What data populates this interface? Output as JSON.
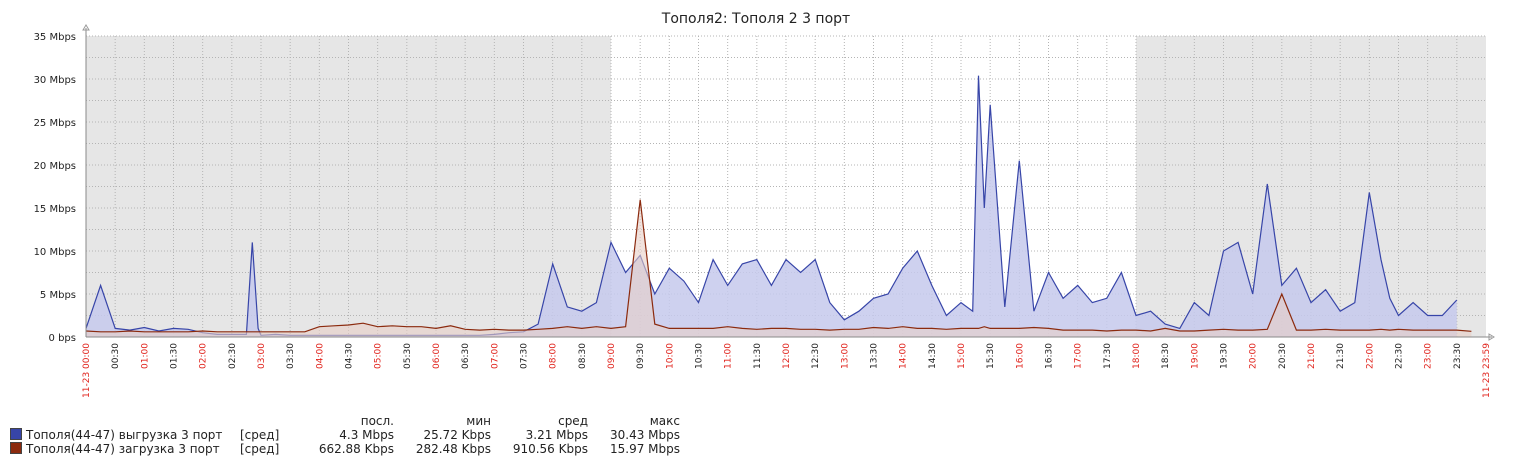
{
  "chart_data": {
    "type": "area",
    "title": "Тополя2: Тополя 2  3 порт",
    "y_unit": "Mbps",
    "ylim": [
      0,
      35
    ],
    "y_ticks": [
      "0 bps",
      "5 Mbps",
      "10 Mbps",
      "15 Mbps",
      "20 Mbps",
      "25 Mbps",
      "30 Mbps",
      "35 Mbps"
    ],
    "x_start_label": "11-23 00:00",
    "x_end_label": "11-23 23:59",
    "x_ticks": [
      "00:30",
      "01:00",
      "01:30",
      "02:00",
      "02:30",
      "03:00",
      "03:30",
      "04:00",
      "04:30",
      "05:00",
      "05:30",
      "06:00",
      "06:30",
      "07:00",
      "07:30",
      "08:00",
      "08:30",
      "09:00",
      "09:30",
      "10:00",
      "10:30",
      "11:00",
      "11:30",
      "12:00",
      "12:30",
      "13:00",
      "13:30",
      "14:00",
      "14:30",
      "15:00",
      "15:30",
      "16:00",
      "16:30",
      "17:00",
      "17:30",
      "18:00",
      "18:30",
      "19:00",
      "19:30",
      "20:00",
      "20:30",
      "21:00",
      "21:30",
      "22:00",
      "22:30",
      "23:00",
      "23:30"
    ],
    "working_time": [
      9,
      18
    ],
    "grid": true,
    "x_hours": [
      0,
      0.25,
      0.5,
      0.75,
      1,
      1.25,
      1.5,
      1.75,
      2,
      2.25,
      2.5,
      2.75,
      2.85,
      2.95,
      3,
      3.25,
      3.5,
      3.75,
      4,
      4.25,
      4.5,
      4.75,
      5,
      5.25,
      5.5,
      5.75,
      6,
      6.25,
      6.5,
      6.75,
      7,
      7.25,
      7.5,
      7.75,
      8,
      8.25,
      8.5,
      8.75,
      9,
      9.25,
      9.5,
      9.75,
      10,
      10.25,
      10.5,
      10.75,
      11,
      11.25,
      11.5,
      11.75,
      12,
      12.25,
      12.5,
      12.75,
      13,
      13.25,
      13.5,
      13.75,
      14,
      14.25,
      14.5,
      14.75,
      15,
      15.2,
      15.3,
      15.4,
      15.5,
      15.75,
      16,
      16.25,
      16.5,
      16.75,
      17,
      17.25,
      17.5,
      17.75,
      18,
      18.25,
      18.5,
      18.75,
      19,
      19.25,
      19.5,
      19.75,
      20,
      20.25,
      20.5,
      20.75,
      21,
      21.25,
      21.5,
      21.75,
      22,
      22.2,
      22.35,
      22.5,
      22.75,
      23,
      23.25,
      23.5,
      23.75,
      23.98
    ],
    "series": [
      {
        "name": "Тополя(44-47) выгрузка 3 порт",
        "color": "#3745a8",
        "fill": "#c5c9ec",
        "function": "[сред]",
        "last": "4.3 Mbps",
        "min": "25.72 Kbps",
        "avg": "3.21 Mbps",
        "max": "30.43 Mbps",
        "values": [
          1.0,
          6.0,
          1.0,
          0.8,
          1.1,
          0.7,
          1.0,
          0.9,
          0.5,
          0.3,
          0.3,
          0.3,
          11.0,
          1.0,
          0.2,
          0.3,
          0.2,
          0.2,
          0.2,
          0.2,
          0.2,
          0.2,
          0.2,
          0.2,
          0.2,
          0.2,
          0.2,
          0.2,
          0.2,
          0.2,
          0.3,
          0.5,
          0.6,
          1.5,
          8.5,
          3.5,
          3.0,
          4.0,
          11.0,
          7.5,
          9.5,
          5.0,
          8.0,
          6.5,
          4.0,
          9.0,
          6.0,
          8.5,
          9.0,
          6.0,
          9.0,
          7.5,
          9.0,
          4.0,
          2.0,
          3.0,
          4.5,
          5.0,
          8.0,
          10.0,
          6.0,
          2.5,
          4.0,
          3.0,
          30.4,
          15.0,
          27.0,
          3.5,
          20.5,
          3.0,
          7.5,
          4.5,
          6.0,
          4.0,
          4.5,
          7.5,
          2.5,
          3.0,
          1.5,
          1.0,
          4.0,
          2.5,
          10.0,
          11.0,
          5.0,
          17.8,
          6.0,
          8.0,
          4.0,
          5.5,
          3.0,
          4.0,
          16.8,
          9.0,
          4.5,
          2.5,
          4.0,
          2.5,
          2.5,
          4.3
        ]
      },
      {
        "name": "Тополя(44-47) загрузка 3 порт",
        "color": "#8b2a0e",
        "fill": "#e8cfc6",
        "function": "[сред]",
        "last": "662.88 Kbps",
        "min": "282.48 Kbps",
        "avg": "910.56 Kbps",
        "max": "15.97 Mbps",
        "values": [
          0.7,
          0.6,
          0.6,
          0.7,
          0.6,
          0.6,
          0.6,
          0.6,
          0.7,
          0.6,
          0.6,
          0.6,
          0.6,
          0.6,
          0.6,
          0.6,
          0.6,
          0.6,
          1.2,
          1.3,
          1.4,
          1.6,
          1.2,
          1.3,
          1.2,
          1.2,
          1.0,
          1.3,
          0.9,
          0.8,
          0.9,
          0.8,
          0.8,
          0.9,
          1.0,
          1.2,
          1.0,
          1.2,
          1.0,
          1.2,
          15.97,
          1.5,
          1.0,
          1.0,
          1.0,
          1.0,
          1.2,
          1.0,
          0.9,
          1.0,
          1.0,
          0.9,
          0.9,
          0.8,
          0.9,
          0.9,
          1.1,
          1.0,
          1.2,
          1.0,
          1.0,
          0.9,
          1.0,
          1.0,
          1.0,
          1.2,
          1.0,
          1.0,
          1.0,
          1.1,
          1.0,
          0.8,
          0.8,
          0.8,
          0.7,
          0.8,
          0.8,
          0.7,
          1.0,
          0.7,
          0.7,
          0.8,
          0.9,
          0.8,
          0.8,
          0.9,
          5.0,
          0.8,
          0.8,
          0.9,
          0.8,
          0.8,
          0.8,
          0.9,
          0.8,
          0.9,
          0.8,
          0.8,
          0.8,
          0.8,
          0.66
        ]
      }
    ]
  },
  "legend": {
    "headers": {
      "last": "посл.",
      "min": "мин",
      "avg": "сред",
      "max": "макс"
    }
  }
}
